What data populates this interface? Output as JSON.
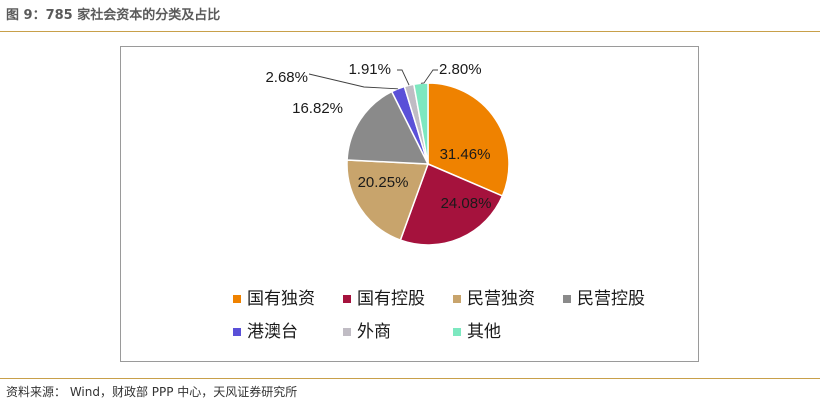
{
  "figure": {
    "title": "图 9：785 家社会资本的分类及占比",
    "source": "资料来源： Wind，财政部 PPP 中心，天风证券研究所"
  },
  "colors": {
    "rule": "#c8a04a",
    "frame": "#9a9a9a"
  },
  "chart_data": {
    "type": "pie",
    "title": "",
    "legend_position": "bottom",
    "series": [
      {
        "name": "国有独资",
        "value": 31.46,
        "label": "31.46%",
        "color": "#ef8200"
      },
      {
        "name": "国有控股",
        "value": 24.08,
        "label": "24.08%",
        "color": "#a5123d"
      },
      {
        "name": "民营独资",
        "value": 20.25,
        "label": "20.25%",
        "color": "#c8a46c"
      },
      {
        "name": "民营控股",
        "value": 16.82,
        "label": "16.82%",
        "color": "#8a8a8a"
      },
      {
        "name": "港澳台",
        "value": 2.68,
        "label": "2.68%",
        "color": "#5a50d8"
      },
      {
        "name": "外商",
        "value": 1.91,
        "label": "1.91%",
        "color": "#c0bcc4"
      },
      {
        "name": "其他",
        "value": 2.8,
        "label": "2.80%",
        "color": "#7de8c0"
      }
    ]
  }
}
